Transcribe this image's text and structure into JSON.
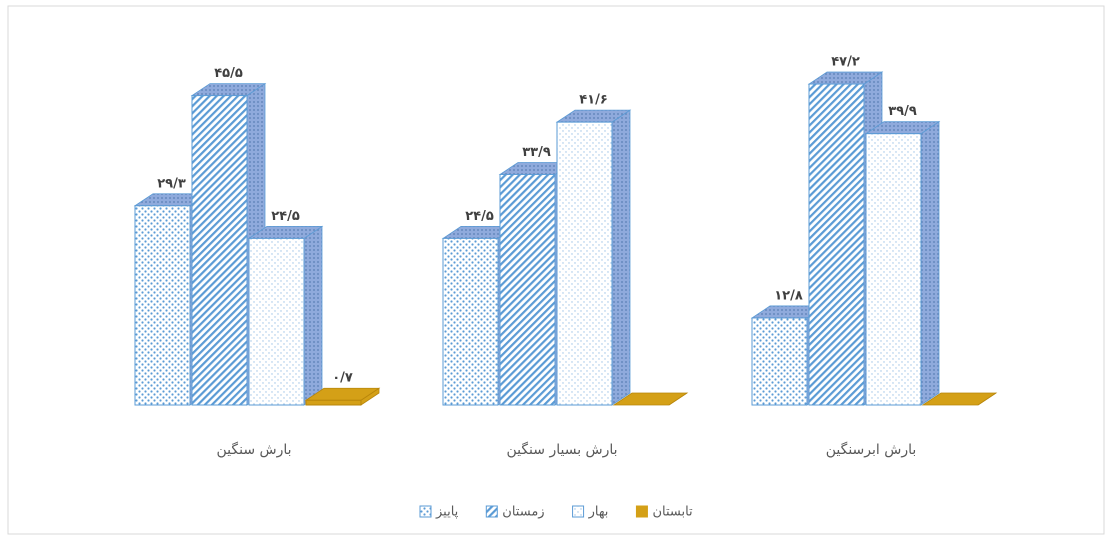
{
  "chart_data": {
    "type": "bar3d",
    "categories": [
      "بارش سنگین",
      "بارش بسیار سنگین",
      "بارش ابرسنگین"
    ],
    "series": [
      {
        "name": "پاییز",
        "color": "#5b9bd5",
        "values": [
          29.3,
          24.5,
          12.8
        ],
        "value_labels": [
          "۲۹/۳",
          "۲۴/۵",
          "۱۲/۸"
        ]
      },
      {
        "name": "زمستان",
        "color": "#5b9bd5",
        "values": [
          45.5,
          33.9,
          47.2
        ],
        "value_labels": [
          "۴۵/۵",
          "۳۳/۹",
          "۴۷/۲"
        ]
      },
      {
        "name": "بهار",
        "color": "#5b9bd5",
        "values": [
          24.5,
          41.6,
          39.9
        ],
        "value_labels": [
          "۲۴/۵",
          "۴۱/۶",
          "۳۹/۹"
        ]
      },
      {
        "name": "تابستان",
        "color": "#d4a017",
        "values": [
          0.7,
          0,
          0
        ],
        "value_labels": [
          "۰/۷",
          null,
          null
        ]
      }
    ]
  }
}
